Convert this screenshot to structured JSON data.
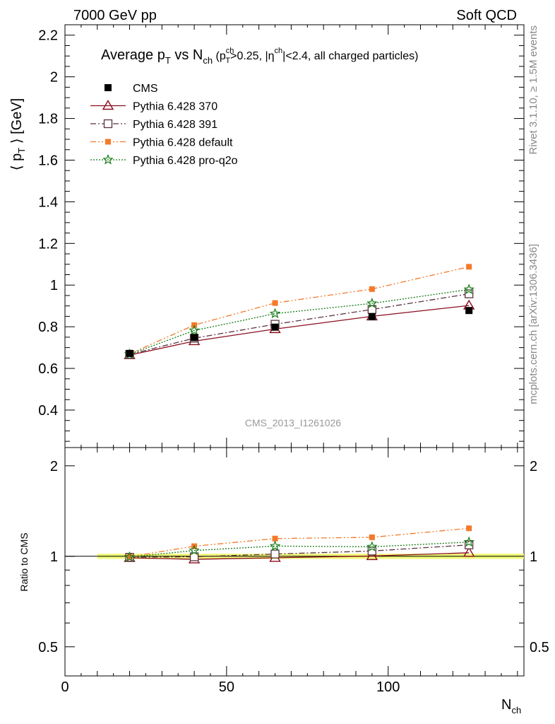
{
  "header": {
    "left": "7000 GeV pp",
    "right": "Soft QCD"
  },
  "side": {
    "top": "Rivet 3.1.10, ≥ 1.5M events",
    "bottom": "mcplots.cern.ch [arXiv:1306.3436]"
  },
  "chart_data": {
    "type": "line",
    "title_main": "Average p",
    "title_sub_T": "T",
    "title_vs": " vs N",
    "title_sub_ch": "ch",
    "title_cuts_a": " (p",
    "title_cuts_sup_ch": "ch",
    "title_cuts_sub_T": "T",
    "title_cuts_b": ">0.25, |η",
    "title_cuts_sup_ch2": "ch",
    "title_cuts_c": "|<2.4, all charged particles)",
    "ylabel_main": "⟨ p",
    "ylabel_sub": "T",
    "ylabel_end": " ⟩ [GeV]",
    "ylabel_ratio": "Ratio to CMS",
    "xlabel": "N",
    "xlabel_sub": "ch",
    "watermark": "CMS_2013_I1261026",
    "xlim": [
      0,
      142
    ],
    "ylim_main": [
      0.22,
      2.25
    ],
    "ylim_ratio": [
      0.4,
      2.3
    ],
    "ratio_log": true,
    "x_ticks": [
      "0",
      "50",
      "100"
    ],
    "y_ticks_main": [
      "0.4",
      "0.6",
      "0.8",
      "1",
      "1.2",
      "1.4",
      "1.6",
      "1.8",
      "2",
      "2.2"
    ],
    "y_ticks_ratio": [
      "0.5",
      "1",
      "2"
    ],
    "x": [
      20,
      40,
      65,
      95,
      125
    ],
    "series": [
      {
        "name": "CMS",
        "values": [
          0.672,
          0.748,
          0.798,
          0.848,
          0.878
        ],
        "color": "#000000",
        "marker": "filled-square",
        "line": "none"
      },
      {
        "name": "Pythia 6.428 370",
        "values": [
          0.664,
          0.731,
          0.789,
          0.85,
          0.902
        ],
        "color": "#8b0d1f",
        "marker": "open-triangle",
        "line": "solid"
      },
      {
        "name": "Pythia 6.428 391",
        "values": [
          0.667,
          0.745,
          0.812,
          0.883,
          0.958
        ],
        "color": "#5b3340",
        "marker": "open-square",
        "line": "dashdot"
      },
      {
        "name": "Pythia 6.428 default",
        "values": [
          0.67,
          0.808,
          0.914,
          0.981,
          1.088
        ],
        "color": "#f47a2a",
        "marker": "small-square",
        "line": "dashdotdot"
      },
      {
        "name": "Pythia 6.428 pro-q2o",
        "values": [
          0.668,
          0.782,
          0.863,
          0.912,
          0.979
        ],
        "color": "#157a15",
        "marker": "star",
        "line": "dotted"
      }
    ],
    "ratio_band_x": [
      10,
      142
    ],
    "legend_position": "top-left"
  }
}
